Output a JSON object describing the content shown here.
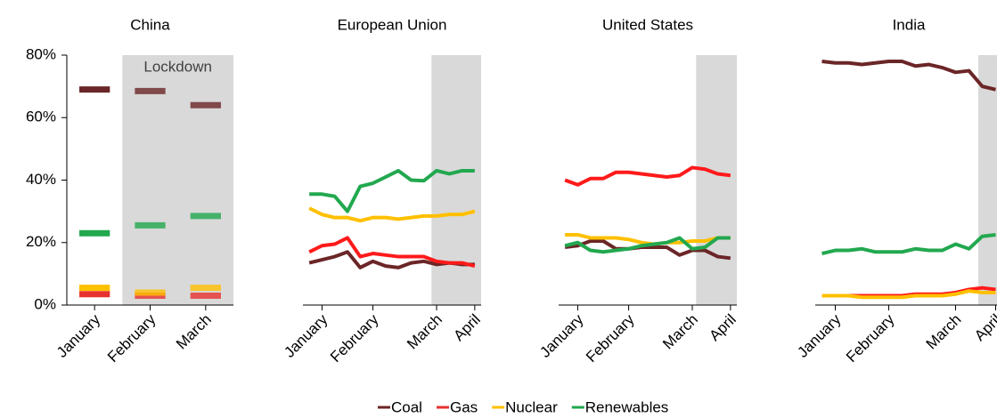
{
  "chart_data": [
    {
      "type": "dash",
      "title": "China",
      "annotation": "Lockdown",
      "shade_from": 0.5,
      "categories": [
        "January",
        "February",
        "March"
      ],
      "ylim": [
        0,
        80
      ],
      "yticks": [
        {
          "value": 0,
          "label": "0%"
        },
        {
          "value": 20,
          "label": "20%"
        },
        {
          "value": 40,
          "label": "40%"
        },
        {
          "value": 60,
          "label": "60%"
        },
        {
          "value": 80,
          "label": "80%"
        }
      ],
      "series": [
        {
          "name": "Coal",
          "color": "#6b2627",
          "values": [
            69,
            68.5,
            64
          ]
        },
        {
          "name": "Gas",
          "color": "#e8322f",
          "values": [
            3.5,
            3,
            3
          ]
        },
        {
          "name": "Nuclear",
          "color": "#ffc000",
          "values": [
            5.5,
            4,
            5.5
          ]
        },
        {
          "name": "Renewables",
          "color": "#22a84f",
          "values": [
            23,
            25.5,
            28.5
          ]
        }
      ]
    },
    {
      "type": "line",
      "title": "European  Union",
      "shade_from": 9.6,
      "categories": [
        null,
        "January",
        null,
        null,
        null,
        "February",
        null,
        null,
        null,
        null,
        "March",
        null,
        null,
        "April"
      ],
      "ylim": [
        0,
        80
      ],
      "series": [
        {
          "name": "Coal",
          "color": "#6b2627",
          "values": [
            13.5,
            14.5,
            15.5,
            17,
            12,
            14,
            12.5,
            12,
            13.5,
            14,
            13,
            13.5,
            13,
            13
          ]
        },
        {
          "name": "Gas",
          "color": "#ff1a1a",
          "values": [
            17,
            19,
            19.5,
            21.5,
            15.5,
            16.5,
            16,
            15.5,
            15.5,
            15.5,
            14,
            13.5,
            13.5,
            12.5
          ]
        },
        {
          "name": "Nuclear",
          "color": "#ffc000",
          "values": [
            31,
            29,
            28,
            28,
            27,
            28,
            28,
            27.5,
            28,
            28.5,
            28.5,
            29,
            29,
            30
          ]
        },
        {
          "name": "Renewables",
          "color": "#22a84f",
          "values": [
            35.5,
            35.5,
            34.8,
            30,
            38,
            39,
            41,
            43,
            40,
            39.8,
            43,
            42,
            43,
            43
          ]
        }
      ]
    },
    {
      "type": "line",
      "title": "United States",
      "shade_from": 10.3,
      "categories": [
        null,
        "January",
        null,
        null,
        null,
        "February",
        null,
        null,
        null,
        null,
        "March",
        null,
        null,
        "April"
      ],
      "ylim": [
        0,
        80
      ],
      "series": [
        {
          "name": "Coal",
          "color": "#6b2627",
          "values": [
            18.5,
            19,
            20.5,
            20.5,
            18,
            18,
            18.5,
            18.5,
            18.5,
            16,
            17.5,
            17.5,
            15.5,
            15
          ]
        },
        {
          "name": "Gas",
          "color": "#ff1a1a",
          "values": [
            40,
            38.5,
            40.5,
            40.5,
            42.5,
            42.5,
            42,
            41.5,
            41,
            41.5,
            44,
            43.5,
            42,
            41.5
          ]
        },
        {
          "name": "Nuclear",
          "color": "#ffc000",
          "values": [
            22.5,
            22.5,
            21.5,
            21.5,
            21.5,
            21,
            20,
            19.5,
            20,
            20,
            20.5,
            20.5,
            21.5,
            21.5
          ]
        },
        {
          "name": "Renewables",
          "color": "#22a84f",
          "values": [
            19,
            20,
            17.5,
            17,
            17.5,
            18,
            19,
            19.5,
            20,
            21.5,
            18,
            18.5,
            21.5,
            21.5
          ]
        }
      ]
    },
    {
      "type": "line",
      "title": "India",
      "shade_from": 11.7,
      "categories": [
        null,
        "January",
        null,
        null,
        null,
        "February",
        null,
        null,
        null,
        null,
        "March",
        null,
        null,
        "April"
      ],
      "ylim": [
        0,
        80
      ],
      "series": [
        {
          "name": "Coal",
          "color": "#6b2627",
          "values": [
            78,
            77.5,
            77.5,
            77,
            77.5,
            78,
            78,
            76.5,
            77,
            76,
            74.5,
            75,
            70,
            69
          ]
        },
        {
          "name": "Gas",
          "color": "#ff1a1a",
          "values": [
            3,
            3,
            3,
            3,
            3,
            3,
            3,
            3.5,
            3.5,
            3.5,
            4,
            5,
            5.5,
            5
          ]
        },
        {
          "name": "Nuclear",
          "color": "#ffc000",
          "values": [
            3,
            3,
            3,
            2.5,
            2.5,
            2.5,
            2.5,
            3,
            3,
            3,
            3.5,
            4.5,
            4,
            4
          ]
        },
        {
          "name": "Renewables",
          "color": "#22a84f",
          "values": [
            16.5,
            17.5,
            17.5,
            18,
            17,
            17,
            17,
            18,
            17.5,
            17.5,
            19.5,
            18,
            22,
            22.5
          ]
        }
      ]
    }
  ]
}
